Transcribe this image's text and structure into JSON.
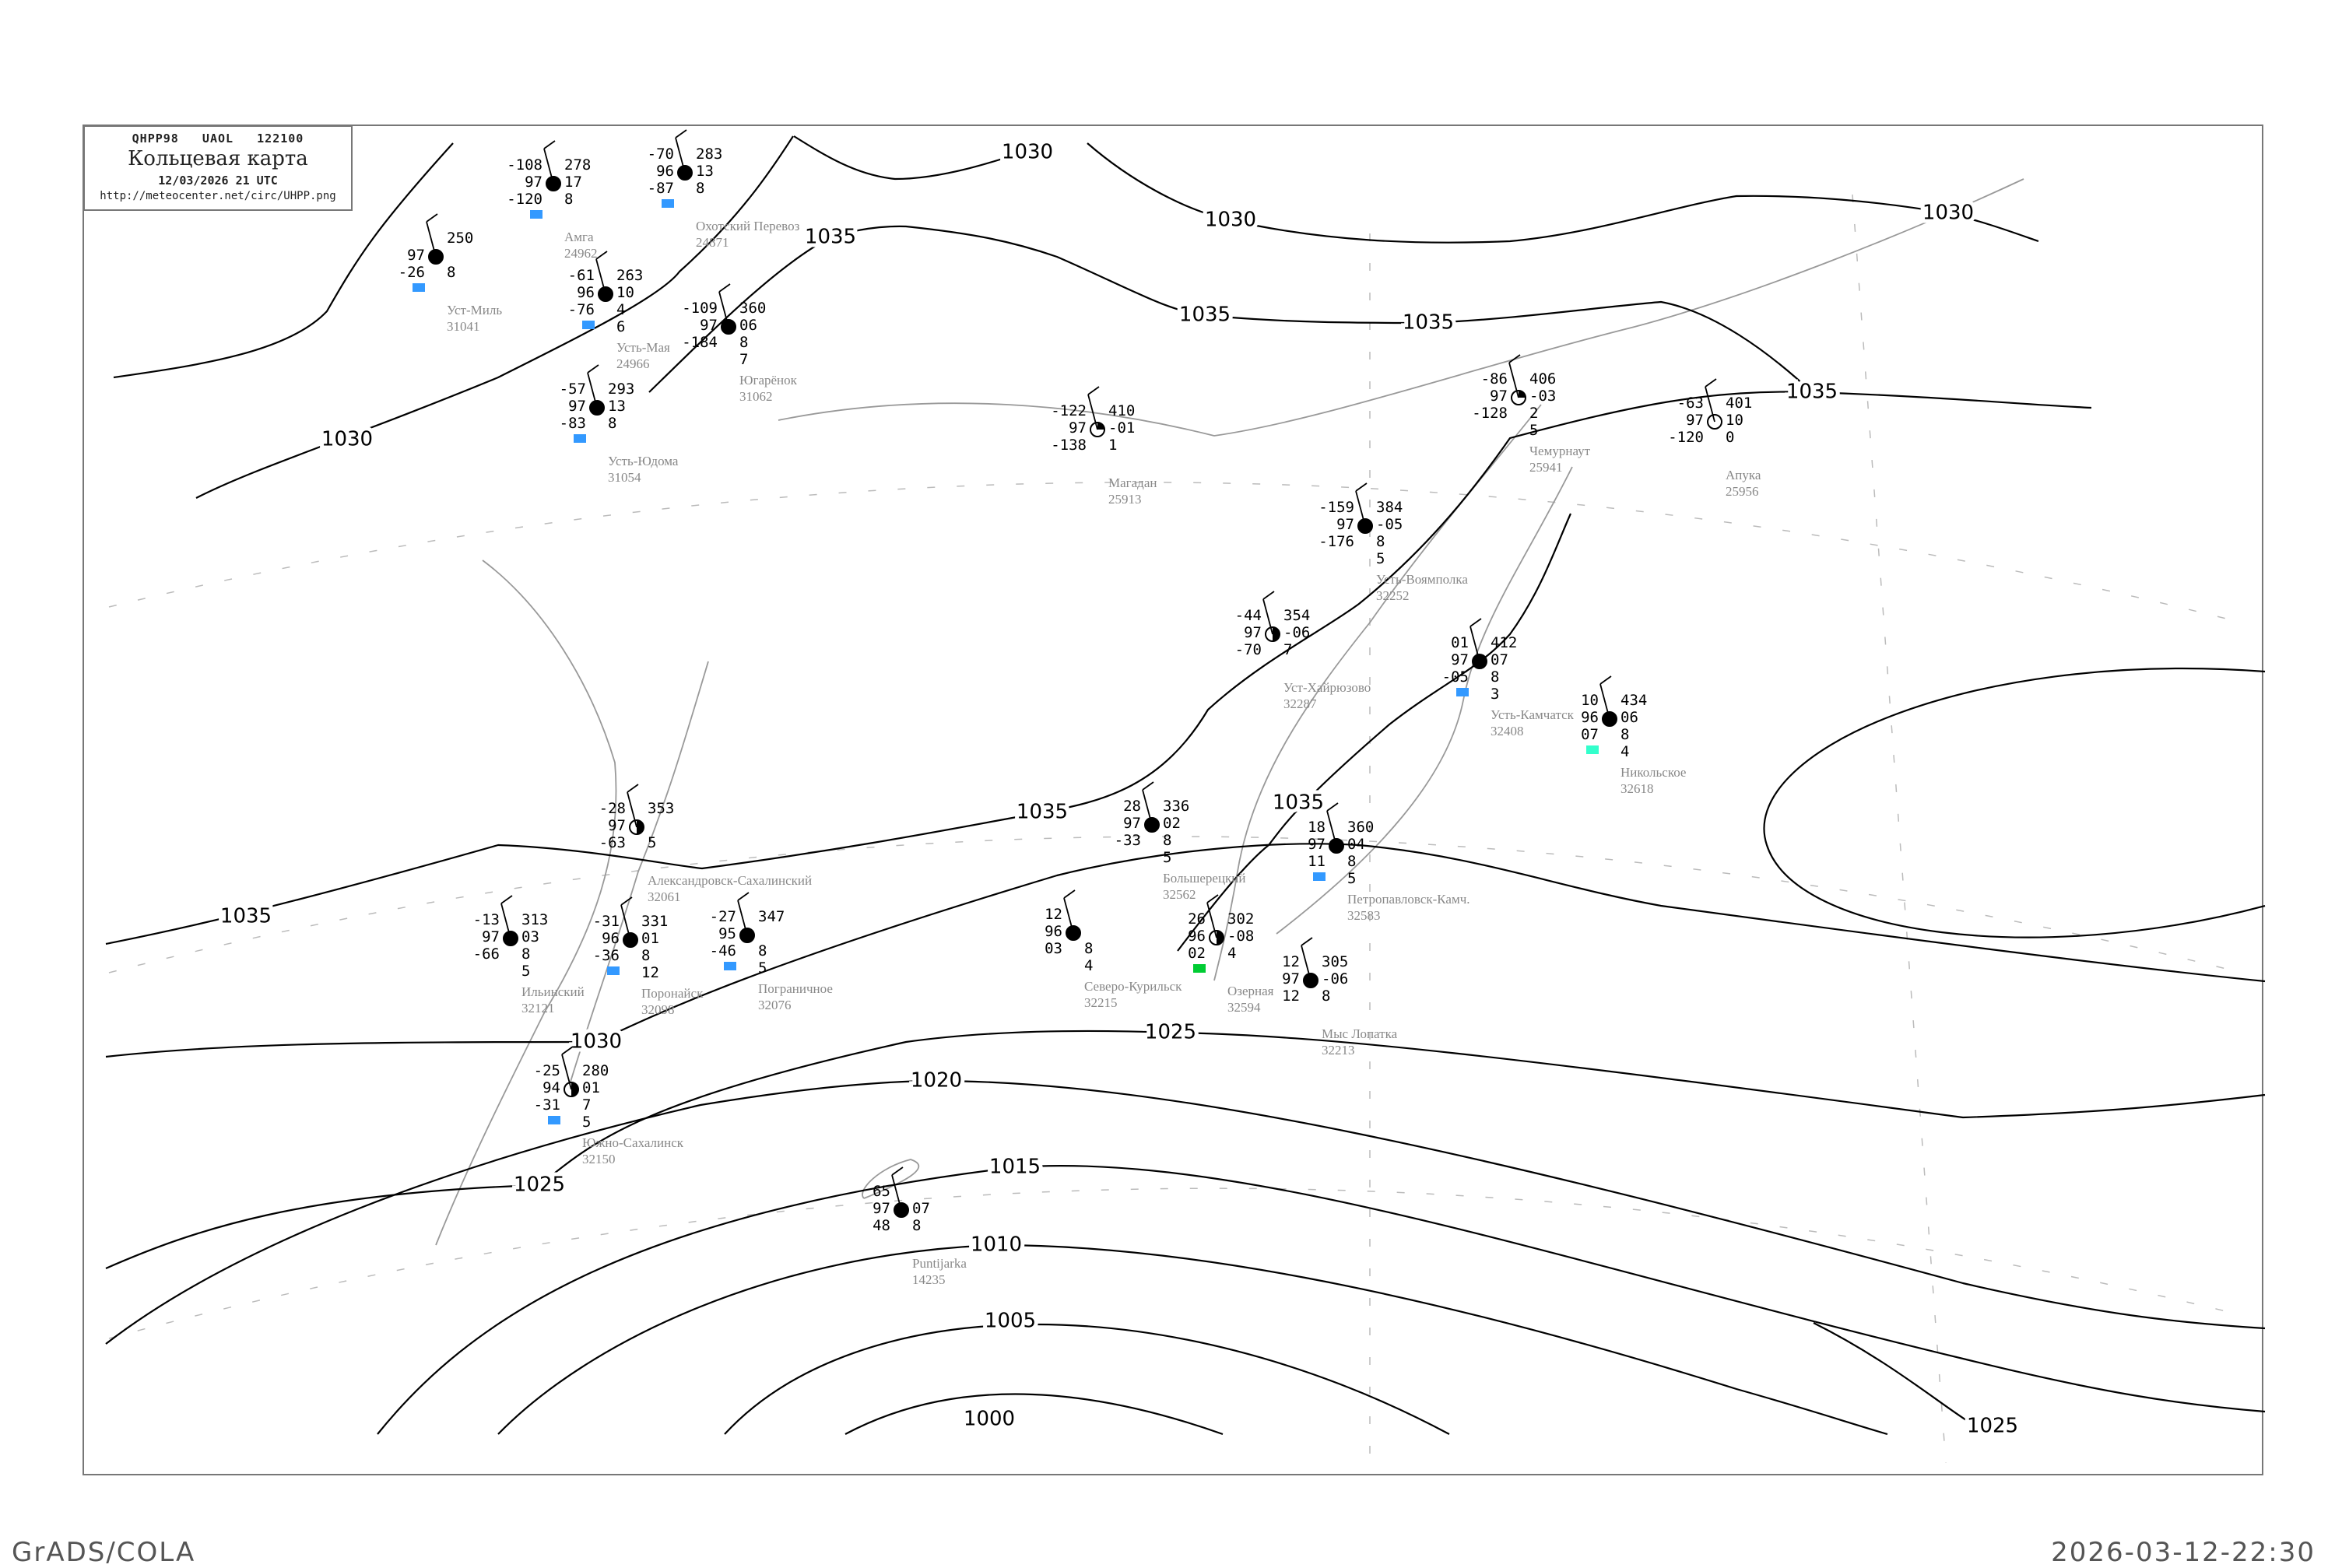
{
  "header": {
    "code_line": "QHPP98   UAOL   122100",
    "title": "Кольцевая карта",
    "date": "12/03/2026 21 UTC",
    "url": "http://meteocenter.net/circ/UHPP.png"
  },
  "footer": {
    "left": "GrADS/COLA",
    "right": "2026-03-12-22:30"
  },
  "colors": {
    "isobar": "#000000",
    "coast": "#999999",
    "frame": "#777777",
    "station_name": "#888888",
    "precip_blue": "#3399ff",
    "precip_green": "#00cc33",
    "precip_cyan": "#33ffcc"
  },
  "isobar_labels": [
    "1000",
    "1005",
    "1010",
    "1015",
    "1020",
    "1025",
    "1025",
    "1025",
    "1030",
    "1030",
    "1030",
    "1030",
    "1030",
    "1035",
    "1035",
    "1035",
    "1035",
    "1035",
    "1035",
    "1035"
  ],
  "stations": [
    {
      "name": "Амга",
      "id": "24962",
      "t": "-108",
      "p1": "97",
      "td": "-120",
      "pres": "278",
      "tend": "17",
      "n": "8",
      "cover": "full",
      "box": "blue"
    },
    {
      "name": "Охотский Перевоз",
      "id": "24871",
      "t": "-70",
      "p1": "96",
      "td": "-87",
      "pres": "283",
      "tend": "13",
      "n": "8",
      "cover": "full",
      "box": "blue"
    },
    {
      "name": "Усть-Мая",
      "id": "24966",
      "t": "-61",
      "p1": "96",
      "td": "-76",
      "pres": "263",
      "tend": "10",
      "n": "4",
      "h": "6",
      "cover": "full",
      "box": "blue"
    },
    {
      "name": "Уст-Миль",
      "id": "31041",
      "t": "",
      "p1": "97",
      "td": "-26",
      "pres": "250",
      "tend": "",
      "n": "8",
      "cover": "full",
      "box": "blue"
    },
    {
      "name": "Усть-Юдома",
      "id": "31054",
      "t": "-57",
      "p1": "97",
      "td": "-83",
      "pres": "293",
      "tend": "13",
      "n": "8",
      "cover": "full",
      "box": "blue"
    },
    {
      "name": "Югарёнок",
      "id": "31062",
      "t": "-109",
      "p1": "97",
      "td": "-184",
      "pres": "360",
      "tend": "06",
      "n": "8",
      "h": "7",
      "cover": "full",
      "box": ""
    },
    {
      "name": "Магадан",
      "id": "25913",
      "t": "-122",
      "p1": "97",
      "td": "-138",
      "pres": "410",
      "tend": "-01",
      "n": "1",
      "cover": "quarter",
      "box": ""
    },
    {
      "name": "Чемурнаут",
      "id": "25941",
      "t": "-86",
      "p1": "97",
      "td": "-128",
      "pres": "406",
      "tend": "-03",
      "n": "2",
      "h": "5",
      "cover": "quarter",
      "box": ""
    },
    {
      "name": "Апука",
      "id": "25956",
      "t": "-63",
      "p1": "97",
      "td": "-120",
      "pres": "401",
      "tend": "10",
      "n": "0",
      "cover": "empty",
      "box": ""
    },
    {
      "name": "Усть-Воямполка",
      "id": "32252",
      "t": "-159",
      "p1": "97",
      "td": "-176",
      "pres": "384",
      "tend": "-05",
      "n": "8",
      "h": "5",
      "cover": "full",
      "box": ""
    },
    {
      "name": "Уст-Хайрюзово",
      "id": "32287",
      "t": "-44",
      "p1": "97",
      "td": "-70",
      "pres": "354",
      "tend": "-06",
      "n": "7",
      "cover": "half",
      "box": ""
    },
    {
      "name": "Усть-Камчатск",
      "id": "32408",
      "t": "01",
      "p1": "97",
      "td": "-05",
      "pres": "412",
      "tend": "07",
      "n": "8",
      "h": "3",
      "cover": "full",
      "box": "blue"
    },
    {
      "name": "Никольское",
      "id": "32618",
      "t": "10",
      "p1": "96",
      "td": "07",
      "pres": "434",
      "tend": "06",
      "n": "8",
      "h": "4",
      "cover": "full",
      "box": "cyan"
    },
    {
      "name": "Большерецкий",
      "id": "32562",
      "t": "28",
      "p1": "97",
      "td": "-33",
      "pres": "336",
      "tend": "02",
      "n": "8",
      "h": "5",
      "cover": "full",
      "box": ""
    },
    {
      "name": "Петропавловск-Камч.",
      "id": "32583",
      "t": "18",
      "p1": "97",
      "td": "11",
      "pres": "360",
      "tend": "04",
      "n": "8",
      "h": "5",
      "cover": "full",
      "box": "blue"
    },
    {
      "name": "Озерная",
      "id": "32594",
      "t": "26",
      "p1": "96",
      "td": "02",
      "pres": "302",
      "tend": "-08",
      "n": "4",
      "cover": "half",
      "box": "green"
    },
    {
      "name": "Мыс Лопатка",
      "id": "32213",
      "t": "12",
      "p1": "97",
      "td": "12",
      "pres": "305",
      "tend": "-06",
      "n": "8",
      "cover": "full",
      "box": ""
    },
    {
      "name": "Северо-Курильск",
      "id": "32215",
      "t": "12",
      "p1": "96",
      "td": "03",
      "pres": "",
      "tend": "",
      "n": "8",
      "h": "4",
      "cover": "full",
      "box": ""
    },
    {
      "name": "Александровск-Сахалинский",
      "id": "32061",
      "t": "-28",
      "p1": "97",
      "td": "-63",
      "pres": "353",
      "tend": "",
      "n": "5",
      "cover": "half",
      "box": ""
    },
    {
      "name": "Пограничное",
      "id": "32076",
      "t": "-27",
      "p1": "95",
      "td": "-46",
      "pres": "347",
      "tend": "",
      "n": "8",
      "h": "5",
      "cover": "full",
      "box": "blue"
    },
    {
      "name": "Поронайск",
      "id": "32098",
      "t": "-31",
      "p1": "96",
      "td": "-36",
      "pres": "331",
      "tend": "01",
      "n": "8",
      "h": "12",
      "cover": "full",
      "box": "blue"
    },
    {
      "name": "Ильинский",
      "id": "32121",
      "t": "-13",
      "p1": "97",
      "td": "-66",
      "pres": "313",
      "tend": "03",
      "n": "8",
      "h": "5",
      "cover": "full",
      "box": ""
    },
    {
      "name": "Южно-Сахалинск",
      "id": "32150",
      "t": "-25",
      "p1": "94",
      "td": "-31",
      "pres": "280",
      "tend": "01",
      "n": "7",
      "h": "5",
      "cover": "half",
      "box": "blue"
    },
    {
      "name": "Puntijarka",
      "id": "14235",
      "t": "65",
      "p1": "97",
      "td": "48",
      "pres": "",
      "tend": "07",
      "n": "8",
      "cover": "full",
      "box": ""
    }
  ]
}
